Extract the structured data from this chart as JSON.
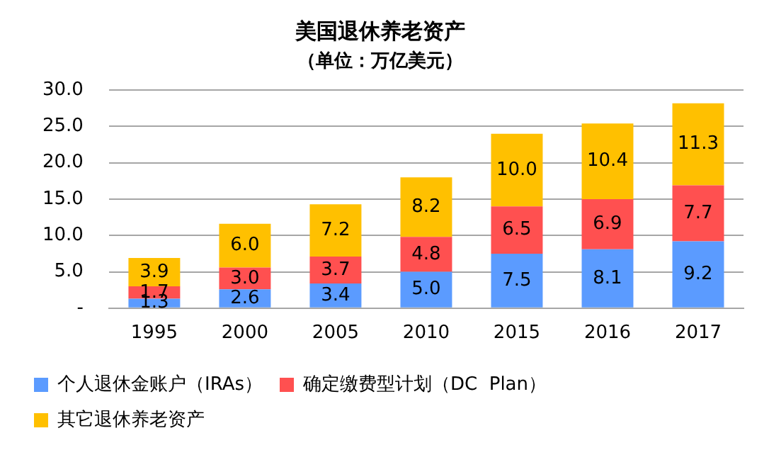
{
  "chart_data": {
    "type": "bar",
    "title": "美国退休养老资产",
    "subtitle": "（单位：万亿美元）",
    "categories": [
      "1995",
      "2000",
      "2005",
      "2010",
      "2015",
      "2016",
      "2017"
    ],
    "stacked": true,
    "series": [
      {
        "name": "个人退休金账户（IRAs）",
        "color": "#5b9bff",
        "values": [
          1.3,
          2.6,
          3.4,
          5.0,
          7.5,
          8.1,
          9.2
        ],
        "value_labels": [
          "1.3",
          "2.6",
          "3.4",
          "5.0",
          "7.5",
          "8.1",
          "9.2"
        ]
      },
      {
        "name": "确定缴费型计划（DC  Plan）",
        "color": "#ff5050",
        "values": [
          1.7,
          3.0,
          3.7,
          4.8,
          6.5,
          6.9,
          7.7
        ],
        "value_labels": [
          "1.7",
          "3.0",
          "3.7",
          "4.8",
          "6.5",
          "6.9",
          "7.7"
        ]
      },
      {
        "name": "其它退休养老资产",
        "color": "#ffc000",
        "values": [
          3.9,
          6.0,
          7.2,
          8.2,
          10.0,
          10.4,
          11.3
        ],
        "value_labels": [
          "3.9",
          "6.0",
          "7.2",
          "8.2",
          "10.0",
          "10.4",
          "11.3"
        ]
      }
    ],
    "ylim": [
      0,
      30
    ],
    "yticks": [
      {
        "value": 0,
        "label": "-"
      },
      {
        "value": 5,
        "label": "5.0"
      },
      {
        "value": 10,
        "label": "10.0"
      },
      {
        "value": 15,
        "label": "15.0"
      },
      {
        "value": 20,
        "label": "20.0"
      },
      {
        "value": 25,
        "label": "25.0"
      },
      {
        "value": 30,
        "label": "30.0"
      }
    ],
    "grid": "y",
    "legend": "bottom"
  }
}
